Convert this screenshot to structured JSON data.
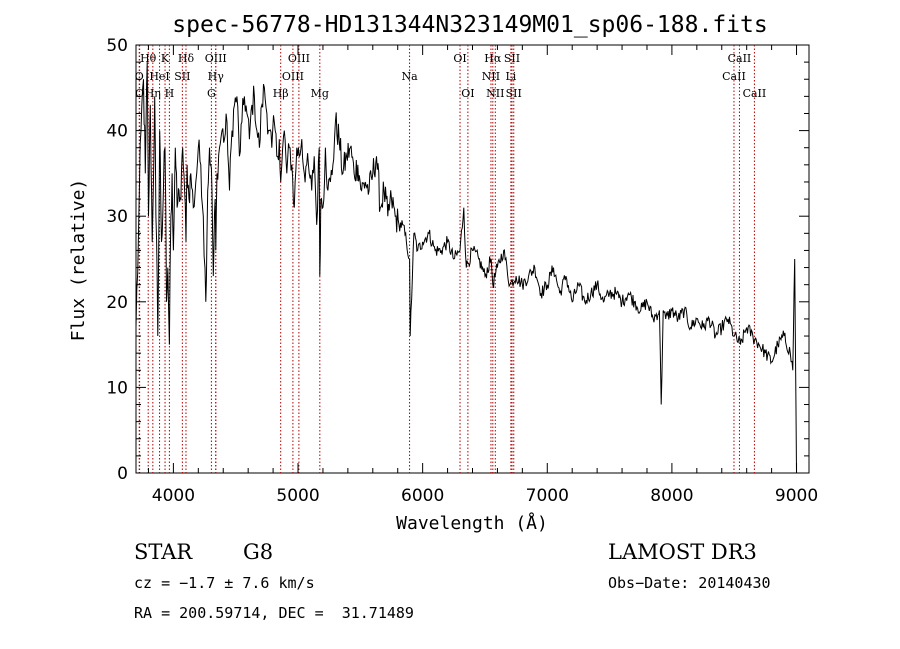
{
  "chart_data": {
    "type": "line",
    "title": "spec-56778-HD131344N323149M01_sp06-188.fits",
    "xlabel": "Wavelength (Å)",
    "ylabel": "Flux (relative)",
    "xlim": [
      3700,
      9100
    ],
    "ylim": [
      0,
      50
    ],
    "xticks": [
      4000,
      5000,
      6000,
      7000,
      8000,
      9000
    ],
    "yticks": [
      0,
      10,
      20,
      30,
      40,
      50
    ],
    "series": [
      {
        "name": "flux",
        "x": [
          3700,
          3720,
          3740,
          3760,
          3775,
          3790,
          3800,
          3815,
          3830,
          3850,
          3860,
          3875,
          3890,
          3905,
          3920,
          3933,
          3945,
          3955,
          3968,
          3980,
          3990,
          4000,
          4015,
          4030,
          4045,
          4060,
          4075,
          4090,
          4101,
          4110,
          4125,
          4140,
          4160,
          4180,
          4200,
          4220,
          4240,
          4260,
          4275,
          4290,
          4300,
          4310,
          4320,
          4335,
          4340,
          4350,
          4370,
          4390,
          4410,
          4430,
          4450,
          4470,
          4490,
          4510,
          4530,
          4550,
          4570,
          4590,
          4610,
          4630,
          4650,
          4670,
          4690,
          4710,
          4730,
          4750,
          4770,
          4790,
          4810,
          4830,
          4850,
          4861,
          4870,
          4890,
          4910,
          4930,
          4950,
          4970,
          4990,
          5010,
          5030,
          5050,
          5070,
          5090,
          5110,
          5130,
          5150,
          5170,
          5175,
          5183,
          5200,
          5220,
          5240,
          5260,
          5280,
          5300,
          5330,
          5360,
          5390,
          5420,
          5450,
          5480,
          5510,
          5540,
          5570,
          5600,
          5630,
          5660,
          5690,
          5720,
          5750,
          5780,
          5810,
          5840,
          5870,
          5895,
          5900,
          5930,
          5960,
          6000,
          6050,
          6100,
          6150,
          6200,
          6250,
          6300,
          6330,
          6350,
          6400,
          6450,
          6500,
          6550,
          6563,
          6600,
          6650,
          6700,
          6750,
          6800,
          6850,
          6900,
          6950,
          7000,
          7050,
          7100,
          7150,
          7200,
          7250,
          7300,
          7350,
          7400,
          7450,
          7500,
          7550,
          7600,
          7650,
          7700,
          7750,
          7800,
          7850,
          7900,
          7914,
          7930,
          7950,
          8000,
          8050,
          8100,
          8150,
          8200,
          8250,
          8300,
          8350,
          8400,
          8450,
          8500,
          8550,
          8600,
          8650,
          8700,
          8750,
          8800,
          8850,
          8900,
          8950,
          8970,
          8985,
          9000
        ],
        "values": [
          17,
          28,
          40,
          46,
          35,
          48,
          30,
          43,
          27,
          44,
          30,
          16,
          40,
          27,
          33,
          38,
          20,
          24,
          15,
          30,
          35,
          26,
          38,
          31,
          33,
          32,
          38,
          33,
          27,
          36,
          32,
          35,
          31,
          34,
          38,
          36,
          30,
          20,
          33,
          38,
          36,
          33,
          23,
          32,
          26,
          35,
          38,
          40,
          39,
          41,
          33,
          40,
          43,
          44,
          37,
          41,
          44,
          42,
          39,
          43,
          44,
          40,
          38,
          43,
          45,
          42,
          40,
          38,
          41,
          37,
          39,
          34,
          36,
          40,
          35,
          38,
          36,
          31,
          38,
          37,
          39,
          35,
          36,
          35,
          33,
          37,
          29,
          38,
          23,
          32,
          31,
          38,
          33,
          34,
          36,
          41,
          39,
          35,
          37,
          38,
          35,
          36,
          33,
          34,
          33,
          35,
          37,
          31,
          33,
          30,
          32,
          30,
          29,
          29,
          27,
          25,
          16,
          28,
          26,
          27,
          28,
          26,
          26,
          27,
          25,
          26,
          31,
          24,
          26,
          25,
          23,
          25,
          22,
          24,
          26,
          22,
          23,
          22,
          23,
          24,
          21,
          22,
          24,
          21,
          23,
          20,
          22,
          20,
          21,
          22,
          20,
          21,
          21,
          20,
          21,
          20,
          19,
          20,
          18,
          19,
          8,
          19,
          18,
          19,
          18,
          19,
          17,
          18,
          17,
          18,
          16,
          17,
          18,
          16,
          15,
          17,
          16,
          15,
          14,
          13,
          15,
          16,
          14,
          12,
          25,
          0
        ]
      }
    ],
    "lines": [
      {
        "label": "Hθ",
        "x": 3798,
        "row": 1
      },
      {
        "label": "O",
        "x": 3726,
        "row": 2
      },
      {
        "label": "O",
        "x": 3729,
        "row": 3
      },
      {
        "label": "Hη",
        "x": 3835,
        "row": 3
      },
      {
        "label": "HeI",
        "x": 3889,
        "row": 2
      },
      {
        "label": "K",
        "x": 3933,
        "row": 1
      },
      {
        "label": "SII",
        "x": 4072,
        "row": 2
      },
      {
        "label": "H",
        "x": 3968,
        "row": 3
      },
      {
        "label": "Hδ",
        "x": 4101,
        "row": 1
      },
      {
        "label": "OIII",
        "x": 4340,
        "row": 1
      },
      {
        "label": "Hγ",
        "x": 4340,
        "row": 2
      },
      {
        "label": "G",
        "x": 4305,
        "row": 3
      },
      {
        "label": "Hβ",
        "x": 4861,
        "row": 3
      },
      {
        "label": "OIII",
        "x": 5007,
        "row": 1
      },
      {
        "label": "OIII",
        "x": 4959,
        "row": 2
      },
      {
        "label": "Mg",
        "x": 5175,
        "row": 3
      },
      {
        "label": "Na",
        "x": 5895,
        "row": 2
      },
      {
        "label": "OI",
        "x": 6300,
        "row": 1
      },
      {
        "label": "OI",
        "x": 6363,
        "row": 3
      },
      {
        "label": "Hα",
        "x": 6563,
        "row": 1
      },
      {
        "label": "NII",
        "x": 6548,
        "row": 2
      },
      {
        "label": "NII",
        "x": 6583,
        "row": 3
      },
      {
        "label": "SII",
        "x": 6717,
        "row": 1
      },
      {
        "label": "Li",
        "x": 6708,
        "row": 2
      },
      {
        "label": "SII",
        "x": 6731,
        "row": 3
      },
      {
        "label": "CaII",
        "x": 8542,
        "row": 1
      },
      {
        "label": "CaII",
        "x": 8498,
        "row": 2
      },
      {
        "label": "CaII",
        "x": 8662,
        "row": 3
      }
    ],
    "line_color": "#b30000"
  },
  "info": {
    "class": "STAR",
    "subclass": "G8",
    "survey": "LAMOST DR3",
    "cz": "cz = −1.7 ± 7.6 km/s",
    "obs_date": "Obs−Date: 20140430",
    "radec": "RA = 200.59714, DEC =  31.71489"
  }
}
